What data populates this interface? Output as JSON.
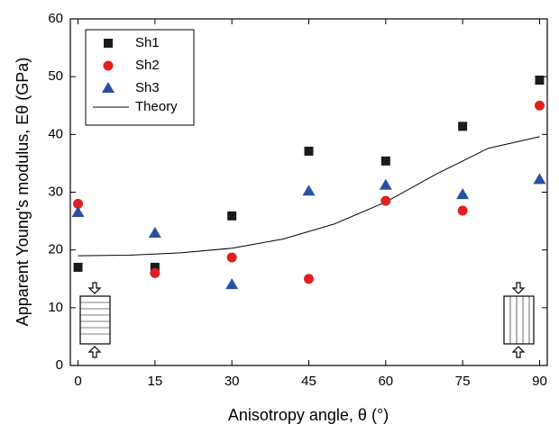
{
  "chart_data": {
    "type": "scatter",
    "xlabel": "Anisotropy angle, θ (°)",
    "ylabel": "Apparent Young's modulus, Eθ (GPa)",
    "xlim": [
      -1.5,
      91.5
    ],
    "ylim": [
      0,
      60
    ],
    "xticks": [
      0,
      15,
      30,
      45,
      60,
      75,
      90
    ],
    "yticks": [
      0,
      10,
      20,
      30,
      40,
      50,
      60
    ],
    "legend": "upper left",
    "series": [
      {
        "name": "Sh1",
        "marker": "square",
        "color": "#1a1a1a",
        "x": [
          0,
          15,
          30,
          45,
          60,
          75,
          90
        ],
        "values": [
          17.0,
          17.0,
          25.9,
          37.1,
          35.4,
          41.4,
          49.4
        ]
      },
      {
        "name": "Sh2",
        "marker": "circle",
        "color": "#e02020",
        "x": [
          0,
          15,
          30,
          45,
          60,
          75,
          90
        ],
        "values": [
          28.0,
          16.0,
          18.7,
          15.0,
          28.5,
          26.8,
          45.0
        ]
      },
      {
        "name": "Sh3",
        "marker": "triangle",
        "color": "#2a50a0",
        "x": [
          0,
          15,
          30,
          45,
          60,
          75,
          90
        ],
        "values": [
          26.5,
          22.9,
          14.0,
          30.2,
          31.2,
          29.6,
          32.2
        ]
      }
    ],
    "theory": {
      "name": "Theory",
      "color": "#000000",
      "x": [
        0,
        10,
        20,
        30,
        40,
        50,
        60,
        70,
        80,
        90
      ],
      "values": [
        19.0,
        19.1,
        19.5,
        20.3,
        21.9,
        24.5,
        28.3,
        33.2,
        37.6,
        39.6
      ]
    }
  }
}
